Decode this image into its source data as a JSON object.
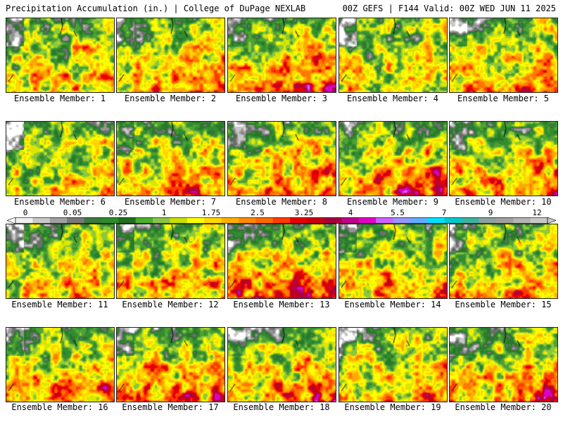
{
  "header": {
    "left": "Precipitation Accumulation (in.) | College of DuPage NEXLAB",
    "right": "00Z GEFS | F144 Valid: 00Z WED JUN 11 2025"
  },
  "members": [
    {
      "label": "Ensemble Member: 1"
    },
    {
      "label": "Ensemble Member: 2"
    },
    {
      "label": "Ensemble Member: 3"
    },
    {
      "label": "Ensemble Member: 4"
    },
    {
      "label": "Ensemble Member: 5"
    },
    {
      "label": "Ensemble Member: 6"
    },
    {
      "label": "Ensemble Member: 7"
    },
    {
      "label": "Ensemble Member: 8"
    },
    {
      "label": "Ensemble Member: 9"
    },
    {
      "label": "Ensemble Member: 10"
    },
    {
      "label": "Ensemble Member: 11"
    },
    {
      "label": "Ensemble Member: 12"
    },
    {
      "label": "Ensemble Member: 13"
    },
    {
      "label": "Ensemble Member: 14"
    },
    {
      "label": "Ensemble Member: 15"
    },
    {
      "label": "Ensemble Member: 16"
    },
    {
      "label": "Ensemble Member: 17"
    },
    {
      "label": "Ensemble Member: 18"
    },
    {
      "label": "Ensemble Member: 19"
    },
    {
      "label": "Ensemble Member: 20"
    }
  ],
  "colorbar": {
    "tick_labels": [
      "0",
      "0.05",
      "0.25",
      "1",
      "1.75",
      "2.5",
      "3.25",
      "4",
      "5.5",
      "7",
      "9",
      "12"
    ],
    "colors": [
      "#f0f0f0",
      "#c8c8c8",
      "#a0a0a0",
      "#787878",
      "#3c7a3c",
      "#2e8b2e",
      "#1f6f1f",
      "#4caf2a",
      "#8bc34a",
      "#c8e000",
      "#ffff00",
      "#ffd700",
      "#ffb000",
      "#ff8c00",
      "#ff6a00",
      "#ff3c00",
      "#e80000",
      "#c80010",
      "#a8003c",
      "#c0008c",
      "#e000c8",
      "#c864ff",
      "#9696ff",
      "#64aaff",
      "#00e0ff",
      "#00c8c8",
      "#40b0a0",
      "#8ca0a0",
      "#a0a0a0",
      "#b4b4b4",
      "#c8c8c8"
    ]
  }
}
